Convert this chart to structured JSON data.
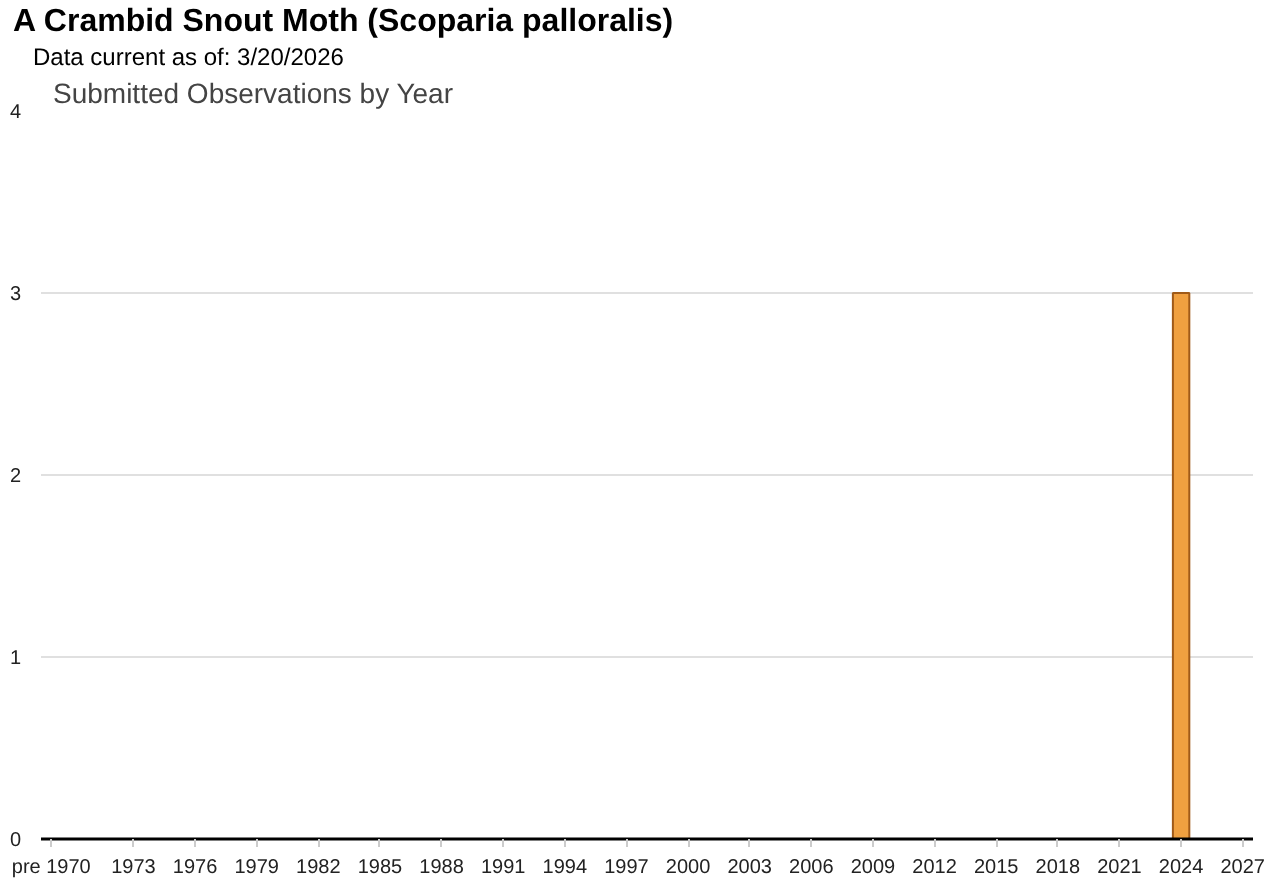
{
  "chart_data": {
    "type": "bar",
    "title": "A Crambid Snout Moth   (Scoparia palloralis)",
    "subtitle": "Data current as of: 3/20/2026",
    "annotations": [
      "Submitted Observations by Year"
    ],
    "x": [
      2024
    ],
    "values": [
      3
    ],
    "color": "#f0a040",
    "xlim": [
      1968.5,
      2027.5
    ],
    "xticks": [
      {
        "value": 1969,
        "label": "pre 1970"
      },
      1973,
      1976,
      1979,
      1982,
      1985,
      1988,
      1991,
      1994,
      1997,
      2000,
      2003,
      2006,
      2009,
      2012,
      2015,
      2018,
      2021,
      2024,
      2027
    ],
    "ylim": [
      0,
      4
    ],
    "yticks": [
      0,
      1,
      2,
      3,
      4
    ],
    "grid": "y"
  }
}
